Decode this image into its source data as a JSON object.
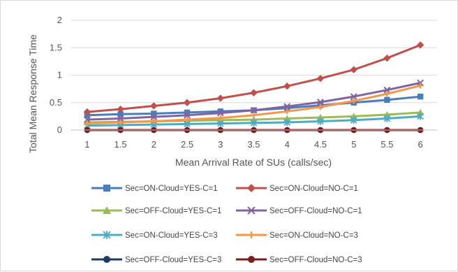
{
  "chart_data": {
    "type": "line",
    "title": "",
    "xlabel": "Mean Arrival Rate of SUs (calls/sec)",
    "ylabel": "Total Mean Response Time",
    "ylim": [
      0,
      2
    ],
    "y_ticks": [
      "0",
      "0.5",
      "1",
      "1.5",
      "2"
    ],
    "grid": "horizontal",
    "legend_position": "bottom",
    "x": [
      "1",
      "1.5",
      "2",
      "2.5",
      "3",
      "3.5",
      "4",
      "4.5",
      "5",
      "5.5",
      "6"
    ],
    "series": [
      {
        "name": "Sec=ON-Cloud=YES-C=1",
        "color": "#4a7ebb",
        "marker": "square",
        "values": [
          0.27,
          0.29,
          0.3,
          0.32,
          0.34,
          0.36,
          0.4,
          0.45,
          0.5,
          0.55,
          0.61
        ]
      },
      {
        "name": "Sec=ON-Cloud=NO-C=1",
        "color": "#c0504d",
        "marker": "diamond",
        "values": [
          0.33,
          0.38,
          0.44,
          0.5,
          0.58,
          0.68,
          0.8,
          0.94,
          1.1,
          1.31,
          1.55
        ]
      },
      {
        "name": "Sec=OFF-Cloud=YES-C=1",
        "color": "#9bbb59",
        "marker": "triangle",
        "values": [
          0.14,
          0.15,
          0.16,
          0.17,
          0.18,
          0.19,
          0.21,
          0.23,
          0.25,
          0.28,
          0.32
        ]
      },
      {
        "name": "Sec=OFF-Cloud=NO-C=1",
        "color": "#8064a2",
        "marker": "x",
        "values": [
          0.19,
          0.21,
          0.24,
          0.27,
          0.31,
          0.36,
          0.43,
          0.51,
          0.61,
          0.73,
          0.86
        ]
      },
      {
        "name": "Sec=ON-Cloud=YES-C=3",
        "color": "#4bacc6",
        "marker": "star",
        "values": [
          0.08,
          0.09,
          0.1,
          0.11,
          0.12,
          0.13,
          0.14,
          0.16,
          0.18,
          0.21,
          0.25
        ]
      },
      {
        "name": "Sec=ON-Cloud=NO-C=3",
        "color": "#f79646",
        "marker": "plus",
        "values": [
          0.12,
          0.14,
          0.16,
          0.19,
          0.22,
          0.27,
          0.34,
          0.42,
          0.53,
          0.66,
          0.81
        ]
      },
      {
        "name": "Sec=OFF-Cloud=YES-C=3",
        "color": "#1f3b63",
        "marker": "circle",
        "values": [
          0.0,
          0.0,
          0.0,
          0.0,
          0.0,
          0.0,
          0.0,
          0.0,
          0.0,
          0.0,
          0.0
        ]
      },
      {
        "name": "Sec=OFF-Cloud=NO-C=3",
        "color": "#7b1c1c",
        "marker": "circle",
        "values": [
          0.0,
          0.0,
          0.0,
          0.0,
          0.0,
          0.0,
          0.0,
          0.0,
          0.0,
          0.0,
          0.0
        ]
      }
    ]
  }
}
